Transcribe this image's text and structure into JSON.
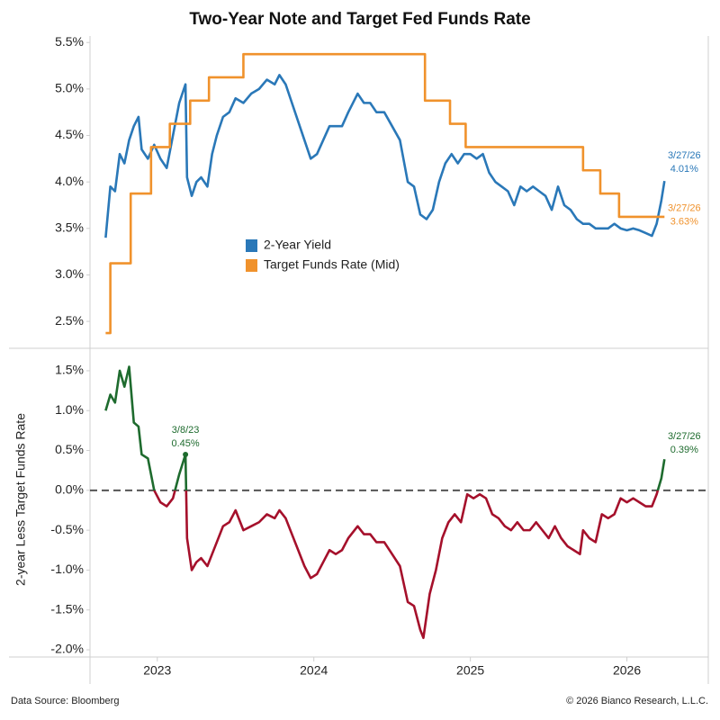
{
  "chart_data": [
    {
      "type": "line",
      "title": "Two-Year Note and Target Fed Funds Rate",
      "xlim": [
        2022.57,
        2026.52
      ],
      "ylim": [
        2.23,
        5.57
      ],
      "yticks": [
        {
          "value": 2.5,
          "label": "2.5%"
        },
        {
          "value": 3.0,
          "label": "3.0%"
        },
        {
          "value": 3.5,
          "label": "3.5%"
        },
        {
          "value": 4.0,
          "label": "4.0%"
        },
        {
          "value": 4.5,
          "label": "4.5%"
        },
        {
          "value": 5.0,
          "label": "5.0%"
        },
        {
          "value": 5.5,
          "label": "5.5%"
        }
      ],
      "grid": false,
      "legend_position": "center",
      "series": [
        {
          "name": "2-Year Yield",
          "color": "#2a78b8",
          "step": false,
          "x": [
            2022.67,
            2022.7,
            2022.73,
            2022.76,
            2022.79,
            2022.82,
            2022.85,
            2022.88,
            2022.9,
            2022.94,
            2022.98,
            2023.02,
            2023.06,
            2023.1,
            2023.14,
            2023.18,
            2023.19,
            2023.22,
            2023.25,
            2023.28,
            2023.32,
            2023.35,
            2023.38,
            2023.42,
            2023.46,
            2023.5,
            2023.55,
            2023.6,
            2023.65,
            2023.7,
            2023.75,
            2023.78,
            2023.82,
            2023.86,
            2023.9,
            2023.94,
            2023.98,
            2024.02,
            2024.06,
            2024.1,
            2024.14,
            2024.18,
            2024.22,
            2024.28,
            2024.32,
            2024.36,
            2024.4,
            2024.45,
            2024.5,
            2024.55,
            2024.6,
            2024.64,
            2024.68,
            2024.72,
            2024.76,
            2024.8,
            2024.84,
            2024.88,
            2024.92,
            2024.96,
            2025.0,
            2025.04,
            2025.08,
            2025.12,
            2025.16,
            2025.2,
            2025.24,
            2025.28,
            2025.32,
            2025.36,
            2025.4,
            2025.44,
            2025.48,
            2025.52,
            2025.56,
            2025.6,
            2025.64,
            2025.68,
            2025.72,
            2025.76,
            2025.8,
            2025.84,
            2025.88,
            2025.92,
            2025.96,
            2026.0,
            2026.04,
            2026.08,
            2026.12,
            2026.16,
            2026.19,
            2026.22,
            2026.24
          ],
          "values": [
            3.4,
            3.95,
            3.9,
            4.3,
            4.2,
            4.45,
            4.6,
            4.7,
            4.35,
            4.25,
            4.4,
            4.25,
            4.15,
            4.5,
            4.85,
            5.05,
            4.05,
            3.85,
            4.0,
            4.05,
            3.95,
            4.3,
            4.5,
            4.7,
            4.75,
            4.9,
            4.85,
            4.95,
            5.0,
            5.1,
            5.05,
            5.15,
            5.05,
            4.85,
            4.65,
            4.45,
            4.25,
            4.3,
            4.45,
            4.6,
            4.6,
            4.6,
            4.75,
            4.95,
            4.85,
            4.85,
            4.75,
            4.75,
            4.6,
            4.45,
            4.0,
            3.95,
            3.65,
            3.6,
            3.7,
            4.0,
            4.2,
            4.3,
            4.2,
            4.3,
            4.3,
            4.25,
            4.3,
            4.1,
            4.0,
            3.95,
            3.9,
            3.75,
            3.95,
            3.9,
            3.95,
            3.9,
            3.85,
            3.7,
            3.95,
            3.75,
            3.7,
            3.6,
            3.55,
            3.55,
            3.5,
            3.5,
            3.5,
            3.55,
            3.5,
            3.48,
            3.5,
            3.48,
            3.45,
            3.42,
            3.55,
            3.8,
            4.01
          ]
        },
        {
          "name": "Target Funds Rate (Mid)",
          "color": "#f0922c",
          "step": true,
          "x": [
            2022.67,
            2022.7,
            2022.83,
            2022.96,
            2023.08,
            2023.21,
            2023.33,
            2023.55,
            2024.71,
            2024.87,
            2024.97,
            2025.72,
            2025.83,
            2025.95,
            2026.24
          ],
          "values": [
            2.375,
            3.125,
            3.875,
            4.375,
            4.625,
            4.875,
            5.125,
            5.375,
            4.875,
            4.625,
            4.375,
            4.125,
            3.875,
            3.625,
            3.625
          ]
        }
      ],
      "annotations": [
        {
          "date": "3/27/26",
          "x": 2026.24,
          "y": 4.01,
          "label": "4.01%",
          "color": "#2a78b8",
          "dot": false
        },
        {
          "date": "3/27/26",
          "x": 2026.24,
          "y": 3.63,
          "label": "3.63%",
          "color": "#f0922c",
          "dot": false
        }
      ]
    },
    {
      "type": "line",
      "ylabel": "2-year Less Target Funds Rate",
      "xlim": [
        2022.57,
        2026.52
      ],
      "ylim": [
        -2.09,
        1.77
      ],
      "xticks": [
        2023,
        2024,
        2025,
        2026
      ],
      "yticks": [
        {
          "value": -2.0,
          "label": "-2.0%"
        },
        {
          "value": -1.5,
          "label": "-1.5%"
        },
        {
          "value": -1.0,
          "label": "-1.0%"
        },
        {
          "value": -0.5,
          "label": "-0.5%"
        },
        {
          "value": 0.0,
          "label": "0.0%"
        },
        {
          "value": 0.5,
          "label": "0.5%"
        },
        {
          "value": 1.0,
          "label": "1.0%"
        },
        {
          "value": 1.5,
          "label": "1.5%"
        }
      ],
      "zero_line": true,
      "positive_color": "#1e6b2e",
      "negative_color": "#a5102b",
      "x": [
        2022.67,
        2022.7,
        2022.73,
        2022.76,
        2022.79,
        2022.82,
        2022.85,
        2022.88,
        2022.9,
        2022.94,
        2022.98,
        2023.02,
        2023.06,
        2023.1,
        2023.14,
        2023.18,
        2023.19,
        2023.22,
        2023.25,
        2023.28,
        2023.32,
        2023.35,
        2023.38,
        2023.42,
        2023.46,
        2023.5,
        2023.55,
        2023.6,
        2023.65,
        2023.7,
        2023.75,
        2023.78,
        2023.82,
        2023.86,
        2023.9,
        2023.94,
        2023.98,
        2024.02,
        2024.06,
        2024.1,
        2024.14,
        2024.18,
        2024.22,
        2024.28,
        2024.32,
        2024.36,
        2024.4,
        2024.45,
        2024.5,
        2024.55,
        2024.6,
        2024.64,
        2024.68,
        2024.7,
        2024.74,
        2024.78,
        2024.82,
        2024.86,
        2024.9,
        2024.94,
        2024.98,
        2025.02,
        2025.06,
        2025.1,
        2025.14,
        2025.18,
        2025.22,
        2025.26,
        2025.3,
        2025.34,
        2025.38,
        2025.42,
        2025.46,
        2025.5,
        2025.54,
        2025.58,
        2025.62,
        2025.66,
        2025.7,
        2025.72,
        2025.76,
        2025.8,
        2025.84,
        2025.88,
        2025.92,
        2025.96,
        2026.0,
        2026.04,
        2026.08,
        2026.12,
        2026.16,
        2026.19,
        2026.22,
        2026.24
      ],
      "values": [
        1.0,
        1.2,
        1.1,
        1.5,
        1.3,
        1.55,
        0.85,
        0.8,
        0.45,
        0.4,
        0.0,
        -0.15,
        -0.2,
        -0.1,
        0.2,
        0.45,
        -0.6,
        -1.0,
        -0.9,
        -0.85,
        -0.95,
        -0.8,
        -0.65,
        -0.45,
        -0.4,
        -0.25,
        -0.5,
        -0.45,
        -0.4,
        -0.3,
        -0.35,
        -0.25,
        -0.35,
        -0.55,
        -0.75,
        -0.95,
        -1.1,
        -1.05,
        -0.9,
        -0.75,
        -0.8,
        -0.75,
        -0.6,
        -0.45,
        -0.55,
        -0.55,
        -0.65,
        -0.65,
        -0.8,
        -0.95,
        -1.4,
        -1.45,
        -1.75,
        -1.85,
        -1.3,
        -1.0,
        -0.6,
        -0.4,
        -0.3,
        -0.4,
        -0.05,
        -0.1,
        -0.05,
        -0.1,
        -0.3,
        -0.35,
        -0.45,
        -0.5,
        -0.4,
        -0.5,
        -0.5,
        -0.4,
        -0.5,
        -0.6,
        -0.45,
        -0.6,
        -0.7,
        -0.75,
        -0.8,
        -0.5,
        -0.6,
        -0.65,
        -0.3,
        -0.35,
        -0.3,
        -0.1,
        -0.15,
        -0.1,
        -0.15,
        -0.2,
        -0.2,
        -0.05,
        0.15,
        0.39
      ],
      "annotations": [
        {
          "date": "3/8/23",
          "x": 2023.18,
          "y": 0.45,
          "label": "0.45%",
          "color": "#1e6b2e",
          "dot": true
        },
        {
          "date": "3/27/26",
          "x": 2026.24,
          "y": 0.39,
          "label": "0.39%",
          "color": "#1e6b2e",
          "dot": false
        }
      ]
    }
  ],
  "footer": {
    "source": "Data Source: Bloomberg",
    "copyright": "© 2026 Bianco Research, L.L.C."
  }
}
